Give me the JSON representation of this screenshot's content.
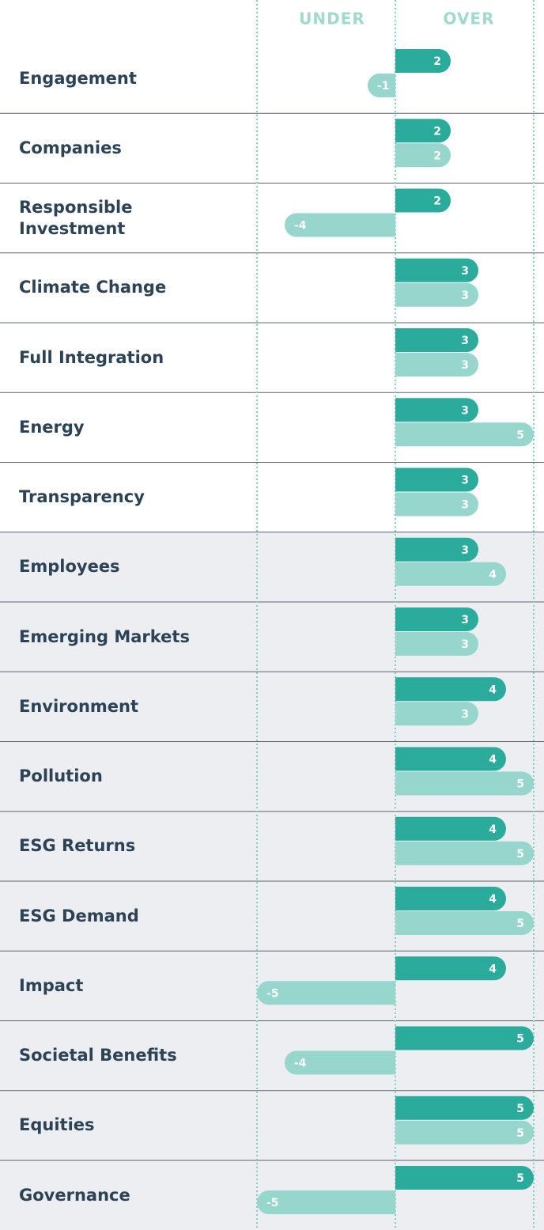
{
  "chart_data": {
    "type": "diverging-bar",
    "headers": [
      "UNDER",
      "OVER"
    ],
    "categories": [
      "Engagement",
      "Companies",
      "Responsible Investment",
      "Climate Change",
      "Full Integration",
      "Energy",
      "Transparency",
      "Employees",
      "Emerging Markets",
      "Environment",
      "Pollution",
      "ESG Returns",
      "ESG Demand",
      "Impact",
      "Societal Benefits",
      "Equities",
      "Governance"
    ],
    "series": [
      {
        "color": "#2aab9b",
        "values": [
          2,
          2,
          2,
          3,
          3,
          3,
          3,
          3,
          3,
          4,
          4,
          4,
          4,
          4,
          5,
          5,
          5
        ]
      },
      {
        "color": "#96d6cc",
        "values": [
          -1,
          2,
          -4,
          3,
          3,
          5,
          3,
          4,
          3,
          3,
          5,
          5,
          5,
          -5,
          -4,
          5,
          -5
        ]
      }
    ],
    "xlim": [
      -5,
      5
    ],
    "xticks": [
      -5,
      0,
      5
    ]
  }
}
